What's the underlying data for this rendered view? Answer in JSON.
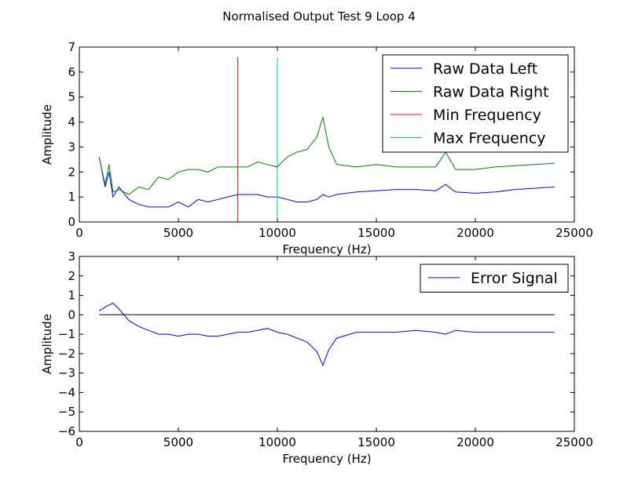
{
  "figure_title": "Normalised Output Test 9 Loop 4",
  "chart_data": [
    {
      "type": "line",
      "xlabel": "Frequency (Hz)",
      "ylabel": "Amplitude",
      "xlim": [
        0,
        25000
      ],
      "ylim": [
        0,
        7
      ],
      "xticks": [
        0,
        5000,
        10000,
        15000,
        20000,
        25000
      ],
      "yticks": [
        0,
        1,
        2,
        3,
        4,
        5,
        6,
        7
      ],
      "grid": false,
      "legend_position": "top-right",
      "series": [
        {
          "name": "Raw Data Left",
          "color": "#0000ff",
          "x": [
            1000,
            1300,
            1500,
            1700,
            2000,
            2500,
            3000,
            3500,
            4000,
            4500,
            5000,
            5500,
            6000,
            6500,
            7000,
            7500,
            8000,
            8500,
            9000,
            9500,
            10000,
            10500,
            11000,
            11500,
            12000,
            12300,
            12600,
            13000,
            14000,
            15000,
            16000,
            17000,
            18000,
            18500,
            19000,
            20000,
            21000,
            22000,
            23000,
            24000
          ],
          "y": [
            2.6,
            1.4,
            2.0,
            1.0,
            1.4,
            0.9,
            0.7,
            0.6,
            0.6,
            0.6,
            0.8,
            0.6,
            0.9,
            0.8,
            0.9,
            1.0,
            1.1,
            1.1,
            1.1,
            1.0,
            1.0,
            0.9,
            0.8,
            0.8,
            0.9,
            1.1,
            1.0,
            1.1,
            1.2,
            1.25,
            1.3,
            1.3,
            1.25,
            1.5,
            1.2,
            1.15,
            1.2,
            1.3,
            1.35,
            1.4
          ]
        },
        {
          "name": "Raw Data Right",
          "color": "#008000",
          "x": [
            1000,
            1300,
            1500,
            1700,
            2000,
            2500,
            3000,
            3500,
            4000,
            4500,
            5000,
            5500,
            6000,
            6500,
            7000,
            7500,
            8000,
            8500,
            9000,
            9500,
            10000,
            10500,
            11000,
            11500,
            12000,
            12300,
            12600,
            13000,
            14000,
            15000,
            16000,
            17000,
            18000,
            18500,
            19000,
            20000,
            21000,
            22000,
            23000,
            24000
          ],
          "y": [
            2.6,
            1.5,
            2.3,
            1.2,
            1.3,
            1.1,
            1.4,
            1.3,
            1.8,
            1.7,
            2.0,
            2.1,
            2.1,
            2.0,
            2.2,
            2.2,
            2.2,
            2.2,
            2.4,
            2.3,
            2.2,
            2.6,
            2.8,
            2.9,
            3.4,
            4.2,
            3.0,
            2.3,
            2.2,
            2.3,
            2.2,
            2.2,
            2.2,
            2.8,
            2.1,
            2.1,
            2.2,
            2.25,
            2.3,
            2.35
          ]
        },
        {
          "name": "Min Frequency",
          "color": "#ff0000",
          "x": [
            8000,
            8000
          ],
          "y": [
            0,
            6.6
          ]
        },
        {
          "name": "Max Frequency",
          "color": "#00bfbf",
          "x": [
            10000,
            10000
          ],
          "y": [
            0,
            6.6
          ]
        }
      ]
    },
    {
      "type": "line",
      "xlabel": "Frequency (Hz)",
      "ylabel": "Amplitude",
      "xlim": [
        0,
        25000
      ],
      "ylim": [
        -6,
        3
      ],
      "xticks": [
        0,
        5000,
        10000,
        15000,
        20000,
        25000
      ],
      "yticks": [
        -6,
        -5,
        -4,
        -3,
        -2,
        -1,
        0,
        1,
        2,
        3
      ],
      "grid": false,
      "legend_position": "top-right",
      "series": [
        {
          "name": "Error Signal",
          "color": "#0000ff",
          "x": [
            1000,
            1300,
            1500,
            1700,
            2000,
            2500,
            3000,
            3500,
            4000,
            4500,
            5000,
            5500,
            6000,
            6500,
            7000,
            7500,
            8000,
            8500,
            9000,
            9500,
            10000,
            10500,
            11000,
            11500,
            12000,
            12300,
            12600,
            13000,
            14000,
            15000,
            16000,
            17000,
            18000,
            18500,
            19000,
            20000,
            21000,
            22000,
            23000,
            24000
          ],
          "y": [
            0.2,
            0.4,
            0.5,
            0.6,
            0.3,
            -0.3,
            -0.6,
            -0.8,
            -1.0,
            -1.0,
            -1.1,
            -1.0,
            -1.0,
            -1.1,
            -1.1,
            -1.0,
            -0.9,
            -0.9,
            -0.8,
            -0.7,
            -0.9,
            -1.0,
            -1.2,
            -1.4,
            -1.9,
            -2.6,
            -1.8,
            -1.2,
            -0.9,
            -0.9,
            -0.9,
            -0.8,
            -0.9,
            -1.0,
            -0.8,
            -0.9,
            -0.9,
            -0.9,
            -0.9,
            -0.9
          ]
        },
        {
          "name": "",
          "color": "#000000",
          "x": [
            1000,
            24000
          ],
          "y": [
            0,
            0
          ]
        }
      ]
    }
  ]
}
